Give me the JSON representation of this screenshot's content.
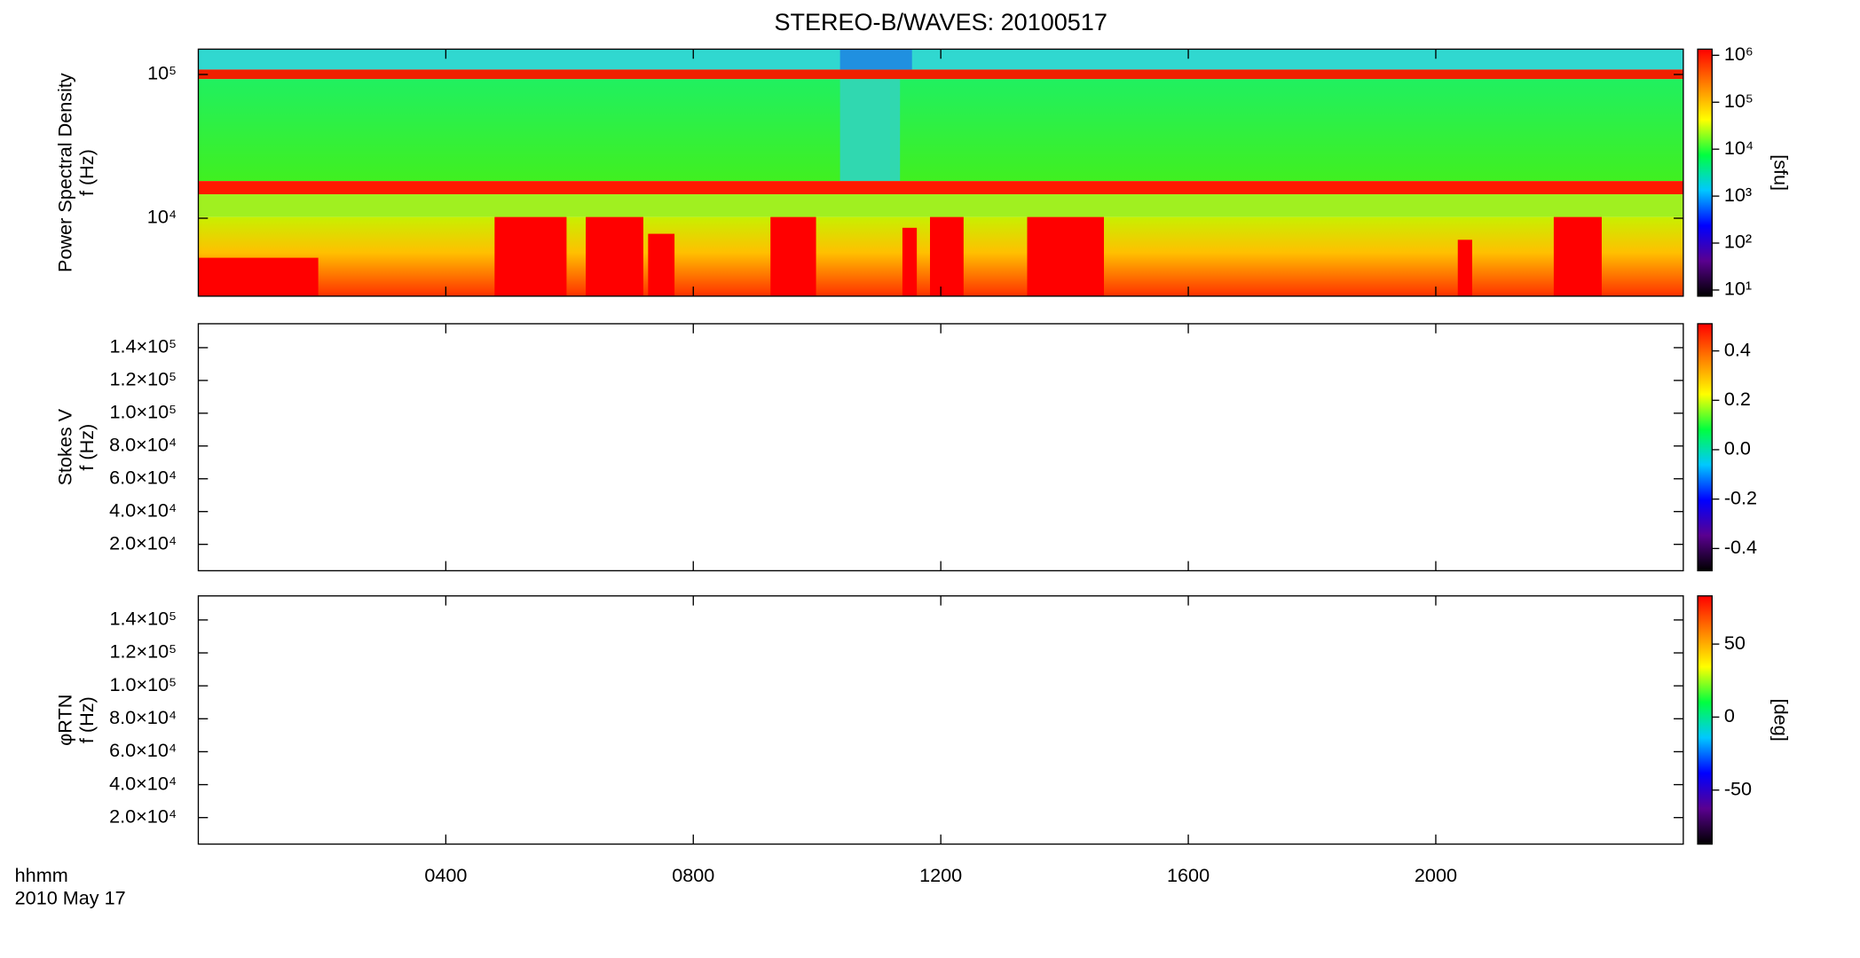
{
  "chart_data": [
    {
      "type": "heatmap",
      "title": "STEREO-B/WAVES: 20100517",
      "ylabel": [
        "Power Spectral Density",
        "f (Hz)"
      ],
      "log_y": true,
      "ylim": [
        2870,
        150000
      ],
      "yticks": [
        {
          "value": 10000,
          "label": "10⁴"
        },
        {
          "value": 100000,
          "label": "10⁵"
        }
      ],
      "colorbar": {
        "log": true,
        "zlim": [
          7.4,
          1350000
        ],
        "zticks": [
          {
            "value": 10,
            "label": "10¹"
          },
          {
            "value": 100,
            "label": "10²"
          },
          {
            "value": 1000,
            "label": "10³"
          },
          {
            "value": 10000,
            "label": "10⁴"
          },
          {
            "value": 100000,
            "label": "10⁵"
          },
          {
            "value": 1000000,
            "label": "10⁶"
          }
        ],
        "label": "[sfu]",
        "colormap": [
          "#000000",
          "#5a0090",
          "#0000ff",
          "#00c8ff",
          "#00ff40",
          "#ffff00",
          "#ff8000",
          "#ff0000"
        ]
      }
    },
    {
      "type": "heatmap",
      "ylabel": [
        "Stokes V",
        "f (Hz)"
      ],
      "log_y": false,
      "ylim": [
        3900,
        154600
      ],
      "yticks": [
        {
          "value": 20000,
          "label": "2.0×10⁴"
        },
        {
          "value": 40000,
          "label": "4.0×10⁴"
        },
        {
          "value": 60000,
          "label": "6.0×10⁴"
        },
        {
          "value": 80000,
          "label": "8.0×10⁴"
        },
        {
          "value": 100000,
          "label": "1.0×10⁵"
        },
        {
          "value": 120000,
          "label": "1.2×10⁵"
        },
        {
          "value": 140000,
          "label": "1.4×10⁵"
        }
      ],
      "colorbar": {
        "log": false,
        "zlim": [
          -0.49,
          0.51
        ],
        "zticks": [
          -0.4,
          -0.2,
          {
            "value": 0,
            "label": "0.0"
          },
          0.2,
          0.4
        ],
        "colormap": [
          "#000000",
          "#5a0090",
          "#0000ff",
          "#00c8ff",
          "#00ff40",
          "#ffff00",
          "#ff8000",
          "#ff0000"
        ]
      }
    },
    {
      "type": "heatmap",
      "ylabel": [
        "φRTN",
        "f (Hz)"
      ],
      "log_y": false,
      "ylim": [
        3900,
        154600
      ],
      "yticks": [
        {
          "value": 20000,
          "label": "2.0×10⁴"
        },
        {
          "value": 40000,
          "label": "4.0×10⁴"
        },
        {
          "value": 60000,
          "label": "6.0×10⁴"
        },
        {
          "value": 80000,
          "label": "8.0×10⁴"
        },
        {
          "value": 100000,
          "label": "1.0×10⁵"
        },
        {
          "value": 120000,
          "label": "1.2×10⁵"
        },
        {
          "value": 140000,
          "label": "1.4×10⁵"
        }
      ],
      "colorbar": {
        "log": false,
        "zlim": [
          -87,
          83
        ],
        "zticks": [
          -50,
          0,
          50
        ],
        "label": "[deg]",
        "colormap": [
          "#000000",
          "#5a0090",
          "#0000ff",
          "#00c8ff",
          "#00ff40",
          "#ffff00",
          "#ff8000",
          "#ff0000"
        ]
      },
      "xlim": [
        0,
        24
      ],
      "xticks": [
        {
          "value": 4,
          "label": "0400"
        },
        {
          "value": 8,
          "label": "0800"
        },
        {
          "value": 12,
          "label": "1200"
        },
        {
          "value": 16,
          "label": "1600"
        },
        {
          "value": 20,
          "label": "2000"
        }
      ],
      "xlabel": [
        "hhmm",
        "2010 May 17"
      ]
    }
  ]
}
